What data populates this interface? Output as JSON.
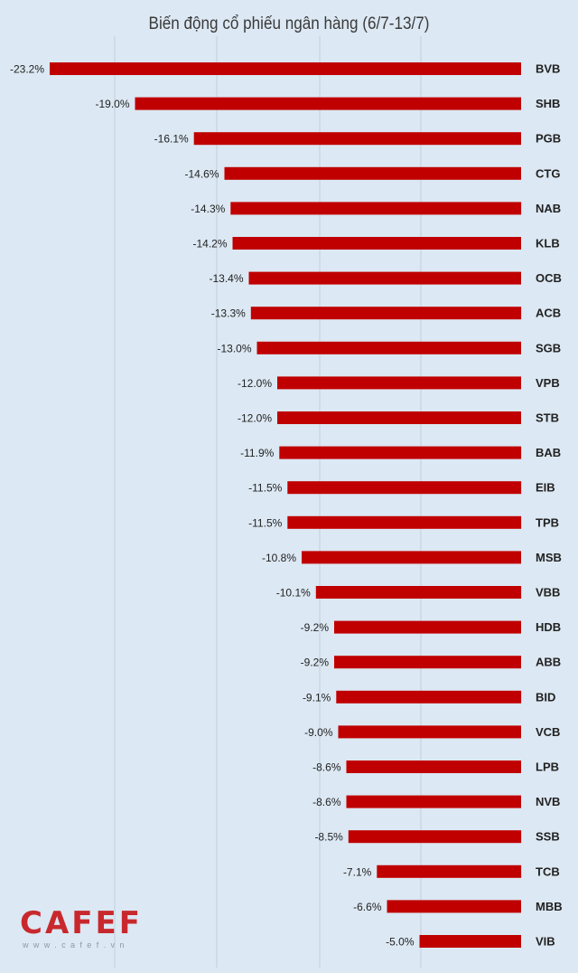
{
  "chart_data": {
    "type": "bar",
    "orientation": "horizontal",
    "title": "Biến động cổ phiếu ngân hàng (6/7-13/7)",
    "categories": [
      "BVB",
      "SHB",
      "PGB",
      "CTG",
      "NAB",
      "KLB",
      "OCB",
      "ACB",
      "SGB",
      "VPB",
      "STB",
      "BAB",
      "EIB",
      "TPB",
      "MSB",
      "VBB",
      "HDB",
      "ABB",
      "BID",
      "VCB",
      "LPB",
      "NVB",
      "SSB",
      "TCB",
      "MBB",
      "VIB"
    ],
    "values": [
      -23.2,
      -19.0,
      -16.1,
      -14.6,
      -14.3,
      -14.2,
      -13.4,
      -13.3,
      -13.0,
      -12.0,
      -12.0,
      -11.9,
      -11.5,
      -11.5,
      -10.8,
      -10.1,
      -9.2,
      -9.2,
      -9.1,
      -9.0,
      -8.6,
      -8.6,
      -8.5,
      -7.1,
      -6.6,
      -5.0
    ],
    "value_labels": [
      "-23.2%",
      "-19.0%",
      "-16.1%",
      "-14.6%",
      "-14.3%",
      "-14.2%",
      "-13.4%",
      "-13.3%",
      "-13.0%",
      "-12.0%",
      "-12.0%",
      "-11.9%",
      "-11.5%",
      "-11.5%",
      "-10.8%",
      "-10.1%",
      "-9.2%",
      "-9.2%",
      "-9.1%",
      "-9.0%",
      "-8.6%",
      "-8.6%",
      "-8.5%",
      "-7.1%",
      "-6.6%",
      "-5.0%"
    ],
    "xlim": [
      -23.2,
      0
    ],
    "unit": "%",
    "bar_color": "#c00000",
    "grid": true,
    "legend": "none"
  },
  "logo": {
    "text": "CAFEF",
    "subtext": "www.cafef.vn"
  }
}
